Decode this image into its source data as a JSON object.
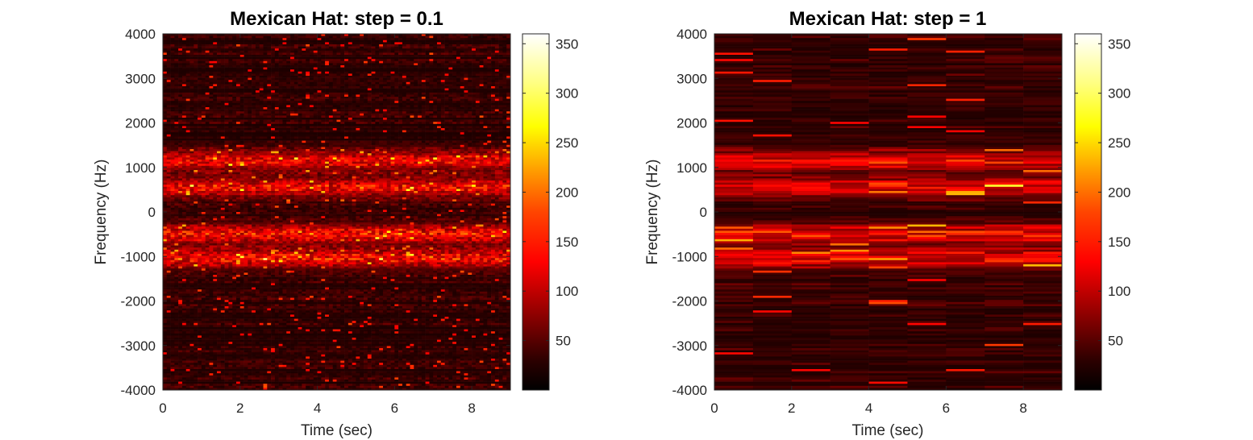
{
  "chart_data": [
    {
      "type": "heatmap",
      "title": "Mexican Hat: step = 0.1",
      "xlabel": "Time (sec)",
      "ylabel": "Frequency (Hz)",
      "xlim": [
        0,
        9
      ],
      "ylim": [
        -4000,
        4000
      ],
      "x_ticks": [
        0,
        2,
        4,
        6,
        8
      ],
      "y_ticks": [
        -4000,
        -3000,
        -2000,
        -1000,
        0,
        1000,
        2000,
        3000,
        4000
      ],
      "time_step": 0.1,
      "colormap": "hot",
      "colorbar": {
        "ticks": [
          50,
          100,
          150,
          200,
          250,
          300,
          350
        ],
        "range": [
          0,
          360
        ]
      },
      "bright_bands_hz": [
        1150,
        550,
        -500,
        -1050
      ],
      "grid": false
    },
    {
      "type": "heatmap",
      "title": "Mexican Hat: step = 1",
      "xlabel": "Time (sec)",
      "ylabel": "Frequency (Hz)",
      "xlim": [
        0,
        9
      ],
      "ylim": [
        -4000,
        4000
      ],
      "x_ticks": [
        0,
        2,
        4,
        6,
        8
      ],
      "y_ticks": [
        -4000,
        -3000,
        -2000,
        -1000,
        0,
        1000,
        2000,
        3000,
        4000
      ],
      "time_step": 1,
      "colormap": "hot",
      "colorbar": {
        "ticks": [
          50,
          100,
          150,
          200,
          250,
          300,
          350
        ],
        "range": [
          0,
          360
        ]
      },
      "bright_bands_hz": [
        1150,
        550,
        -500,
        -1050
      ],
      "grid": false
    }
  ]
}
